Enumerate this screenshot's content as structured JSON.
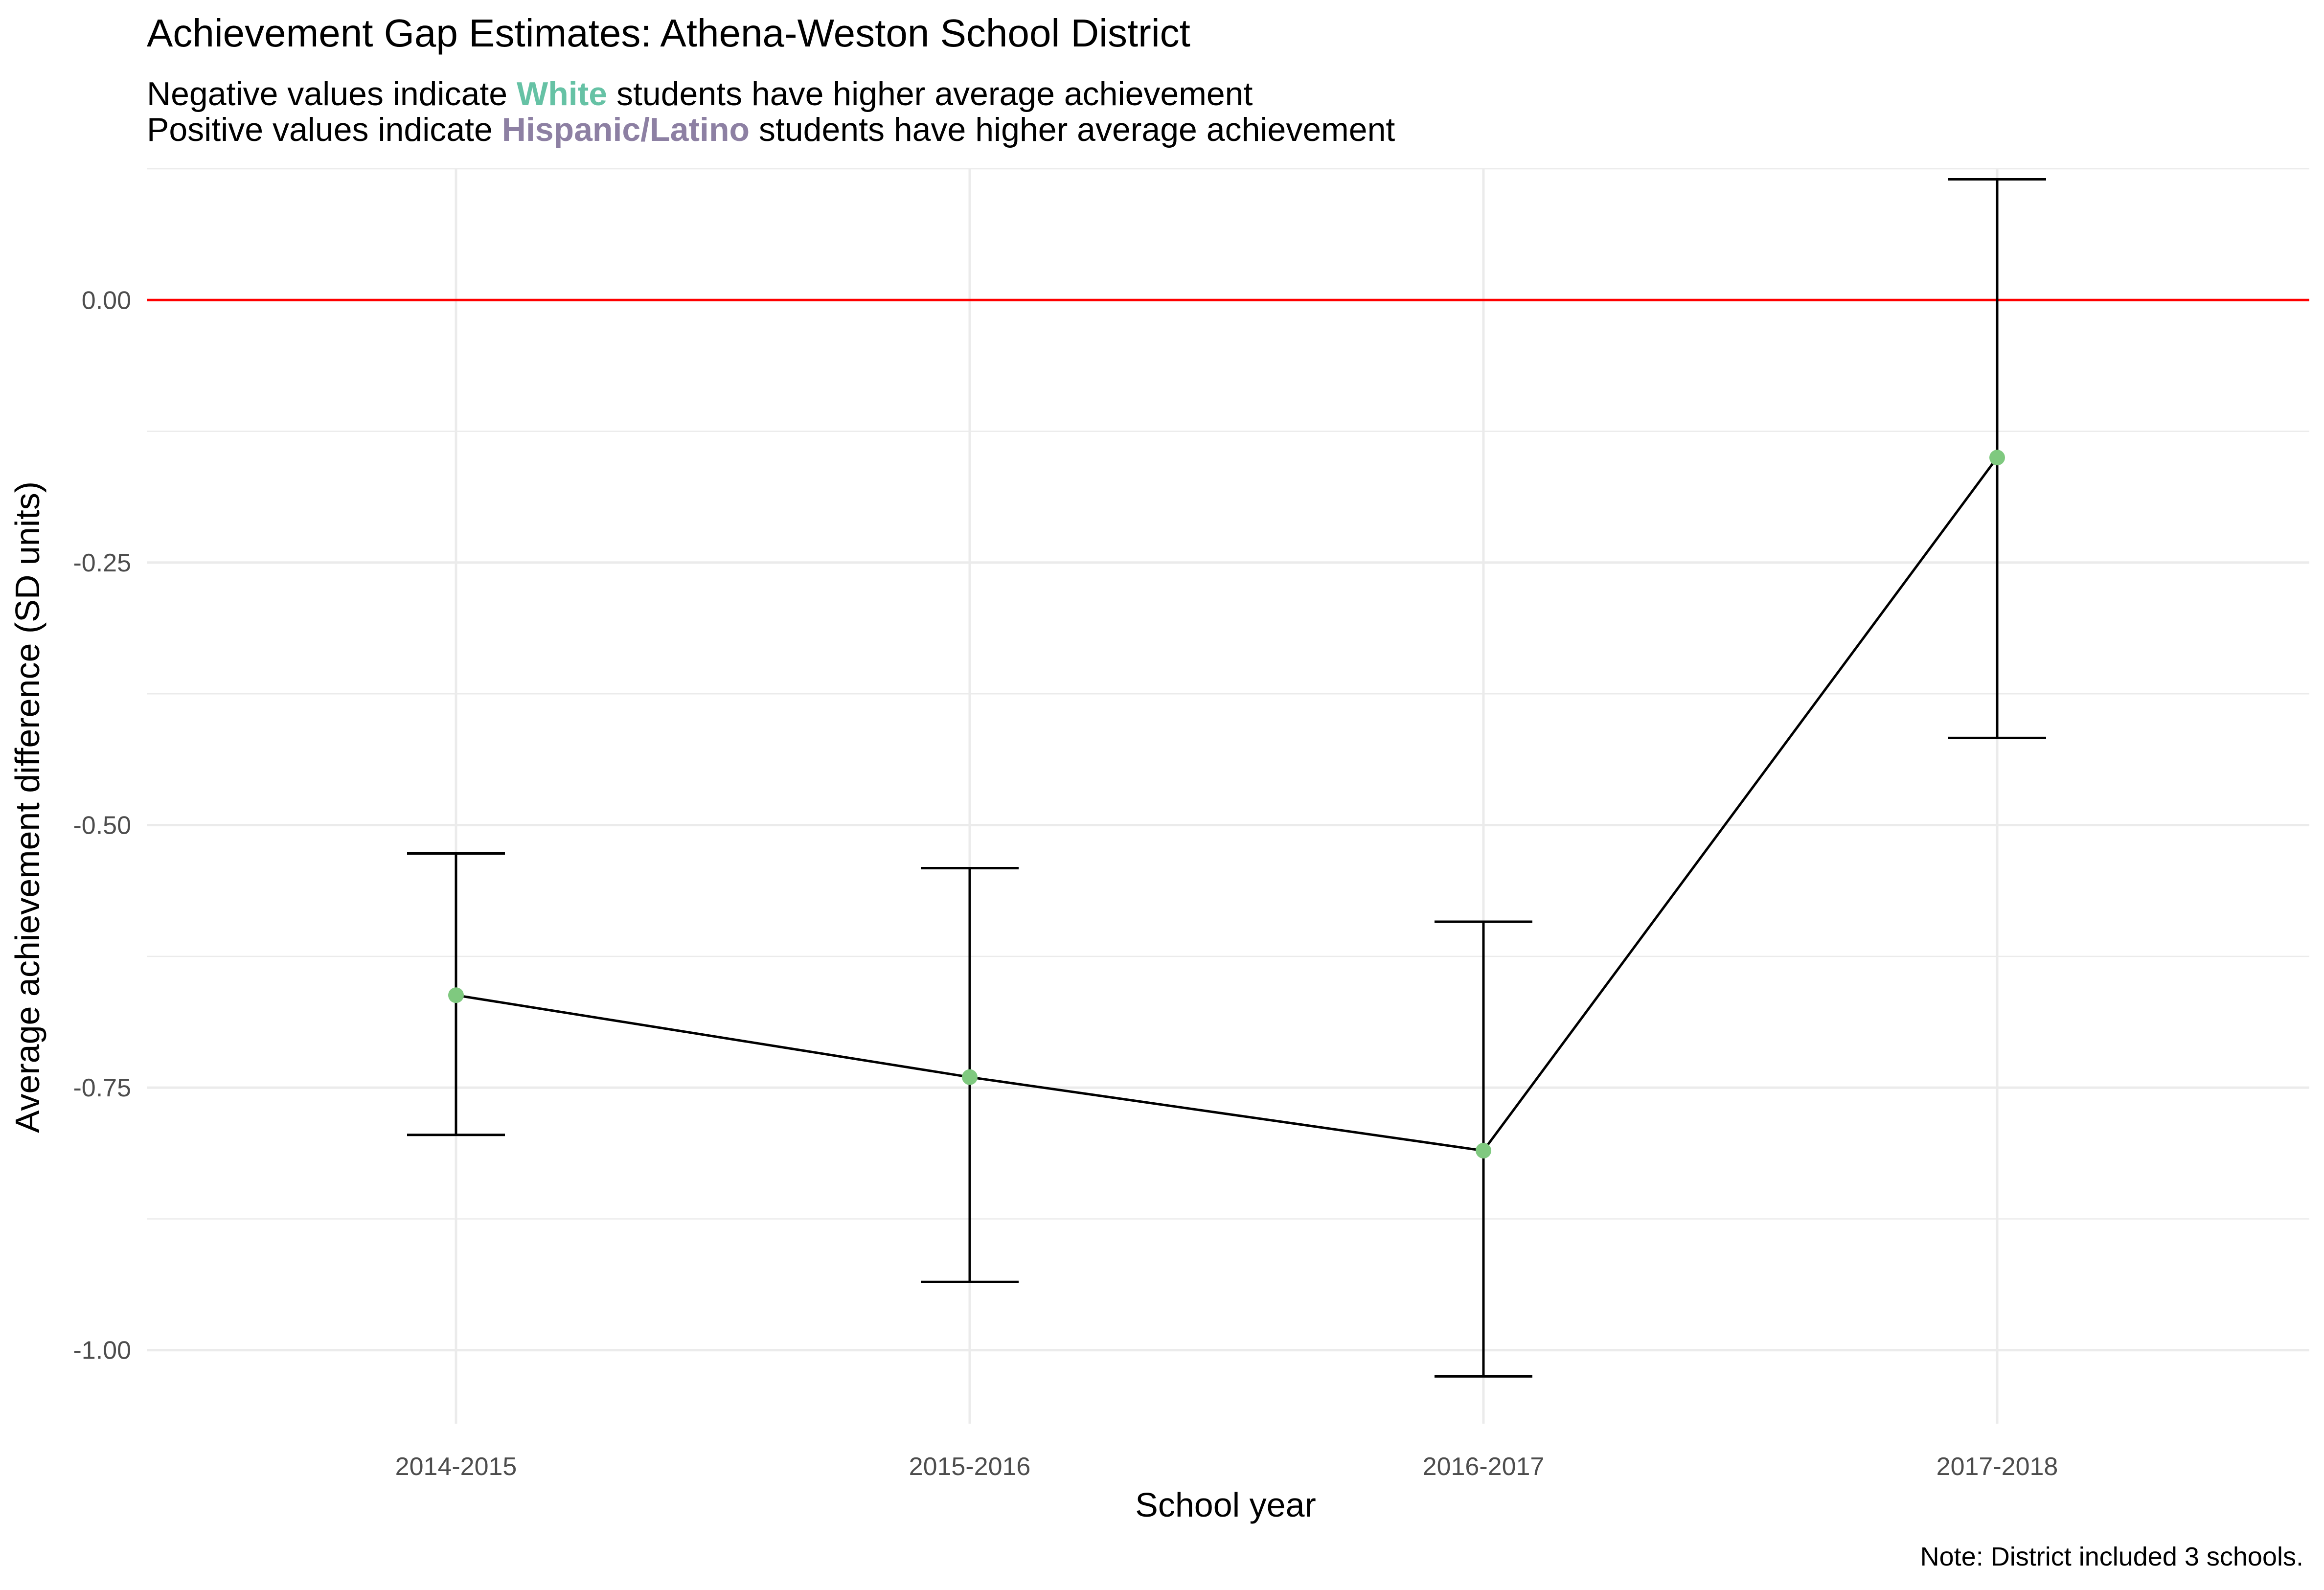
{
  "chart_data": {
    "type": "line",
    "title": "Achievement Gap Estimates: Athena-Weston School District",
    "subtitle": {
      "line1": {
        "before": "Negative values indicate ",
        "highlight": "White",
        "after": " students have higher average achievement"
      },
      "line2": {
        "before": "Positive values indicate ",
        "highlight": "Hispanic/Latino",
        "after": " students have higher average achievement"
      }
    },
    "xlabel": "School year",
    "ylabel": "Average achievement difference (SD units)",
    "caption": "Note: District included 3 schools.",
    "categories": [
      "2014-2015",
      "2015-2016",
      "2016-2017",
      "2017-2018"
    ],
    "y_ticks": [
      0.0,
      -0.25,
      -0.5,
      -0.75,
      -1.0
    ],
    "y_tick_labels": [
      "0.00",
      "-0.25",
      "-0.50",
      "-0.75",
      "-1.00"
    ],
    "ylim": [
      -1.07,
      0.125
    ],
    "series": [
      {
        "values": [
          -0.662,
          -0.74,
          -0.81,
          -0.15
        ],
        "ci_low": [
          -0.795,
          -0.935,
          -1.025,
          -0.417
        ],
        "ci_high": [
          -0.527,
          -0.541,
          -0.592,
          0.115
        ]
      }
    ],
    "reference_line": 0.0,
    "grid": true,
    "legend": "none",
    "colors": {
      "point": "#7fc97f",
      "line": "#000000",
      "reference": "#ff0000",
      "grid": "#ebebeb",
      "white_label": "#66c2a5",
      "hispanic_label": "#8d80a3"
    }
  }
}
